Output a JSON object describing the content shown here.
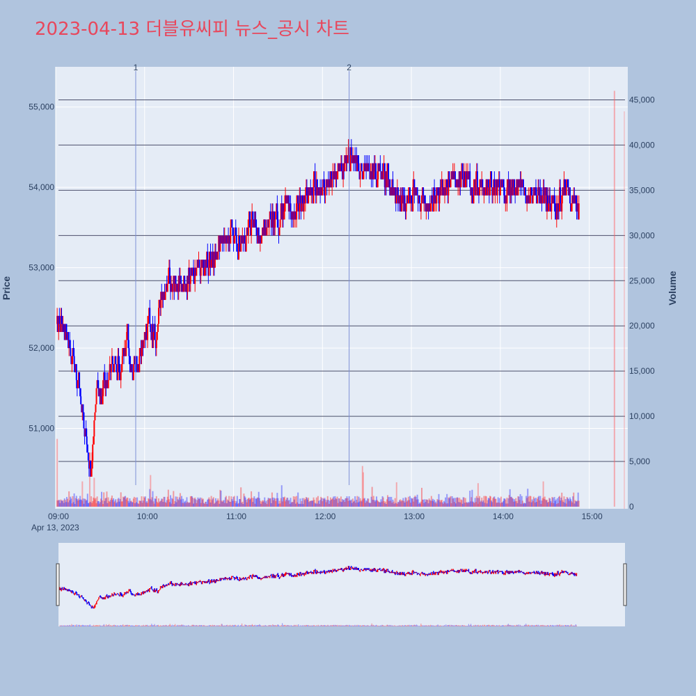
{
  "chart_data": {
    "type": "candlestick",
    "title": "2023-04-13 더블유씨피 뉴스_공시 차트",
    "y_title": "Price",
    "y2_title": "Volume",
    "x_date_label": "Apr 13, 2023",
    "x_tick_labels": [
      "09:00",
      "10:00",
      "11:00",
      "12:00",
      "13:00",
      "14:00",
      "15:00"
    ],
    "y_tick_labels": [
      "51,000",
      "52,000",
      "53,000",
      "54,000",
      "55,000"
    ],
    "y2_tick_labels": [
      "0",
      "5,000",
      "10,000",
      "15,000",
      "20,000",
      "25,000",
      "30,000",
      "35,000",
      "40,000",
      "45,000"
    ],
    "y_range": [
      50000,
      55500
    ],
    "y2_range": [
      0,
      46500
    ],
    "x_range_minutes": [
      540,
      926
    ],
    "annotations": [
      {
        "label": "1",
        "time_minutes": 594
      },
      {
        "label": "2",
        "time_minutes": 738
      }
    ],
    "price_key_points": [
      [
        541,
        52300
      ],
      [
        545,
        52300
      ],
      [
        549,
        52100
      ],
      [
        553,
        51800
      ],
      [
        557,
        51300
      ],
      [
        560,
        50900
      ],
      [
        562,
        50600
      ],
      [
        564,
        50400
      ],
      [
        566,
        51100
      ],
      [
        568,
        51600
      ],
      [
        570,
        51400
      ],
      [
        573,
        51500
      ],
      [
        577,
        51800
      ],
      [
        581,
        51800
      ],
      [
        585,
        51800
      ],
      [
        588,
        52200
      ],
      [
        591,
        51800
      ],
      [
        594,
        51700
      ],
      [
        599,
        52100
      ],
      [
        603,
        52300
      ],
      [
        607,
        52100
      ],
      [
        611,
        52600
      ],
      [
        615,
        52800
      ],
      [
        619,
        52800
      ],
      [
        623,
        52800
      ],
      [
        627,
        52800
      ],
      [
        631,
        52900
      ],
      [
        635,
        53000
      ],
      [
        639,
        53000
      ],
      [
        643,
        53100
      ],
      [
        647,
        53100
      ],
      [
        651,
        53300
      ],
      [
        655,
        53300
      ],
      [
        659,
        53500
      ],
      [
        663,
        53300
      ],
      [
        667,
        53400
      ],
      [
        671,
        53500
      ],
      [
        675,
        53500
      ],
      [
        679,
        53400
      ],
      [
        683,
        53600
      ],
      [
        687,
        53600
      ],
      [
        691,
        53600
      ],
      [
        695,
        53800
      ],
      [
        699,
        53700
      ],
      [
        703,
        53800
      ],
      [
        707,
        53800
      ],
      [
        711,
        53900
      ],
      [
        715,
        54000
      ],
      [
        719,
        54000
      ],
      [
        723,
        54000
      ],
      [
        727,
        54100
      ],
      [
        731,
        54200
      ],
      [
        735,
        54300
      ],
      [
        738,
        54400
      ],
      [
        740,
        54400
      ],
      [
        743,
        54300
      ],
      [
        747,
        54200
      ],
      [
        751,
        54200
      ],
      [
        755,
        54200
      ],
      [
        759,
        54200
      ],
      [
        763,
        54100
      ],
      [
        767,
        54000
      ],
      [
        771,
        53800
      ],
      [
        775,
        53800
      ],
      [
        779,
        53900
      ],
      [
        783,
        53900
      ],
      [
        787,
        53900
      ],
      [
        791,
        53800
      ],
      [
        795,
        53900
      ],
      [
        799,
        53900
      ],
      [
        803,
        54000
      ],
      [
        807,
        54100
      ],
      [
        811,
        54100
      ],
      [
        815,
        54100
      ],
      [
        819,
        54100
      ],
      [
        823,
        54000
      ],
      [
        827,
        54000
      ],
      [
        831,
        54000
      ],
      [
        835,
        54000
      ],
      [
        839,
        54000
      ],
      [
        843,
        53900
      ],
      [
        847,
        54000
      ],
      [
        851,
        54000
      ],
      [
        855,
        54000
      ],
      [
        859,
        53900
      ],
      [
        863,
        53900
      ],
      [
        867,
        53900
      ],
      [
        871,
        53800
      ],
      [
        875,
        53800
      ],
      [
        879,
        53800
      ],
      [
        883,
        54000
      ],
      [
        887,
        53900
      ],
      [
        890,
        53800
      ],
      [
        893,
        53700
      ]
    ],
    "volume_spikes": [
      {
        "time_minutes": 541,
        "volume": 7500
      },
      {
        "time_minutes": 563,
        "volume": 4200
      },
      {
        "time_minutes": 566,
        "volume": 3200
      },
      {
        "time_minutes": 558,
        "volume": 2800
      },
      {
        "time_minutes": 604,
        "volume": 3500
      },
      {
        "time_minutes": 747,
        "volume": 4500
      },
      {
        "time_minutes": 747.5,
        "volume": 3800
      },
      {
        "time_minutes": 770,
        "volume": 2700
      },
      {
        "time_minutes": 869,
        "volume": 2800
      },
      {
        "time_minutes": 825,
        "volume": 2600
      },
      {
        "time_minutes": 917,
        "volume": 46000
      }
    ],
    "up_color": "#ff0000",
    "down_color": "#0000ff",
    "hline_color": "#4a4f6a"
  }
}
